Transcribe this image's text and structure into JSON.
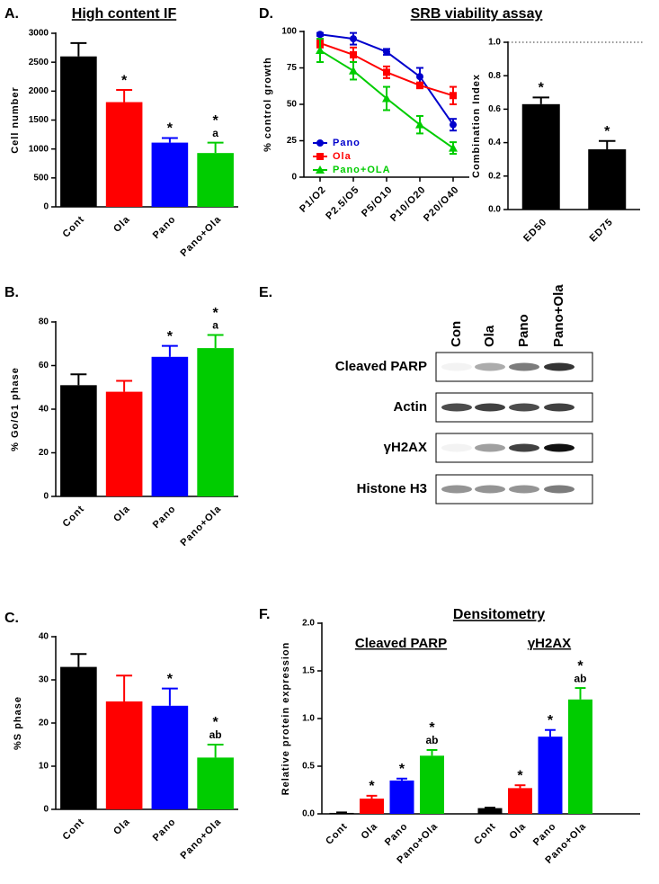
{
  "chart_data": [
    {
      "type": "bar",
      "panel": "A.",
      "title": "High content IF",
      "ylabel": "Cell number",
      "categories": [
        "Cont",
        "Ola",
        "Pano",
        "Pano+Ola"
      ],
      "values": [
        2600,
        1810,
        1110,
        930
      ],
      "errors": [
        230,
        210,
        80,
        180
      ],
      "colors": [
        "#000000",
        "#ff0000",
        "#0000ff",
        "#00cc00"
      ],
      "annotations": [
        null,
        [
          "*"
        ],
        [
          "*"
        ],
        [
          "*",
          "a"
        ]
      ],
      "ylim": [
        0,
        3000
      ],
      "yticks": [
        0,
        500,
        1000,
        1500,
        2000,
        2500,
        3000
      ]
    },
    {
      "type": "bar",
      "panel": "B.",
      "ylabel": "% Go/G1 phase",
      "categories": [
        "Cont",
        "Ola",
        "Pano",
        "Pano+Ola"
      ],
      "values": [
        51,
        48,
        64,
        68
      ],
      "errors": [
        5,
        5,
        5,
        6
      ],
      "colors": [
        "#000000",
        "#ff0000",
        "#0000ff",
        "#00cc00"
      ],
      "annotations": [
        null,
        null,
        [
          "*"
        ],
        [
          "*",
          "a"
        ]
      ],
      "ylim": [
        0,
        80
      ],
      "yticks": [
        0,
        20,
        40,
        60,
        80
      ]
    },
    {
      "type": "bar",
      "panel": "C.",
      "ylabel": "%S phase",
      "categories": [
        "Cont",
        "Ola",
        "Pano",
        "Pano+Ola"
      ],
      "values": [
        33,
        25,
        24,
        12
      ],
      "errors": [
        3,
        6,
        4,
        3
      ],
      "colors": [
        "#000000",
        "#ff0000",
        "#0000ff",
        "#00cc00"
      ],
      "annotations": [
        null,
        null,
        [
          "*"
        ],
        [
          "*",
          "ab"
        ]
      ],
      "ylim": [
        0,
        40
      ],
      "yticks": [
        0,
        10,
        20,
        30,
        40
      ]
    },
    {
      "type": "line",
      "panel": "D.",
      "title": "SRB  viability assay",
      "ylabel": "% control growth",
      "categories": [
        "P1/O2",
        "P2.5/O5",
        "P5/O10",
        "P10/O20",
        "P20/O40"
      ],
      "series": [
        {
          "name": "Pano",
          "color": "#0000cc",
          "marker": "circle",
          "values": [
            98,
            95,
            86,
            69,
            36
          ],
          "errors": [
            1,
            4,
            2,
            6,
            4
          ]
        },
        {
          "name": "Ola",
          "color": "#ff0000",
          "marker": "square",
          "values": [
            92,
            84,
            72,
            63,
            56
          ],
          "errors": [
            3,
            5,
            4,
            2,
            6
          ]
        },
        {
          "name": "Pano+OLA",
          "color": "#00cc00",
          "marker": "triangle",
          "values": [
            87,
            73,
            54,
            36,
            20
          ],
          "errors": [
            8,
            6,
            8,
            6,
            4
          ]
        }
      ],
      "legend": "lower left",
      "ylim": [
        0,
        100
      ],
      "yticks": [
        0,
        25,
        50,
        75,
        100
      ]
    },
    {
      "type": "bar",
      "ylabel": "Combination Index",
      "categories": [
        "ED50",
        "ED75"
      ],
      "values": [
        0.63,
        0.36
      ],
      "errors": [
        0.04,
        0.05
      ],
      "colors": [
        "#000000",
        "#000000"
      ],
      "annotations": [
        [
          "*"
        ],
        [
          "*"
        ]
      ],
      "hline": 1.0,
      "ylim": [
        0,
        1.0
      ],
      "yticks": [
        {
          "value": 0,
          "label": "0.0"
        },
        0.2,
        0.4,
        0.6,
        0.8,
        {
          "value": 1,
          "label": "1.0"
        }
      ]
    },
    {
      "type": "grouped_bar",
      "panel": "F.",
      "title": "Densitometry",
      "ylabel": "Relative protein expression",
      "categories": [
        "Cont",
        "Ola",
        "Pano",
        "Pano+Ola"
      ],
      "colors": [
        "#000000",
        "#ff0000",
        "#0000ff",
        "#00cc00"
      ],
      "groups": [
        {
          "name": "Cleaved PARP",
          "values": [
            0.01,
            0.16,
            0.35,
            0.61
          ],
          "errors": [
            0.005,
            0.03,
            0.02,
            0.06
          ],
          "annotations": [
            null,
            [
              "*"
            ],
            [
              "*"
            ],
            [
              "*",
              "ab"
            ]
          ]
        },
        {
          "name": "γH2AX",
          "values": [
            0.06,
            0.27,
            0.81,
            1.2
          ],
          "errors": [
            0.005,
            0.03,
            0.07,
            0.12
          ],
          "annotations": [
            null,
            [
              "*"
            ],
            [
              "*"
            ],
            [
              "*",
              "ab"
            ]
          ]
        }
      ],
      "ylim": [
        0,
        2.0
      ],
      "yticks": [
        {
          "value": 0,
          "label": "0.0"
        },
        0.5,
        {
          "value": 1,
          "label": "1.0"
        },
        1.5,
        {
          "value": 2,
          "label": "2.0"
        }
      ]
    }
  ],
  "blot": {
    "panel": "E.",
    "lanes": [
      "Con",
      "Ola",
      "Pano",
      "Pano+Ola"
    ],
    "rows": [
      "Cleaved PARP",
      "Actin",
      "γH2AX",
      "Histone H3"
    ]
  }
}
